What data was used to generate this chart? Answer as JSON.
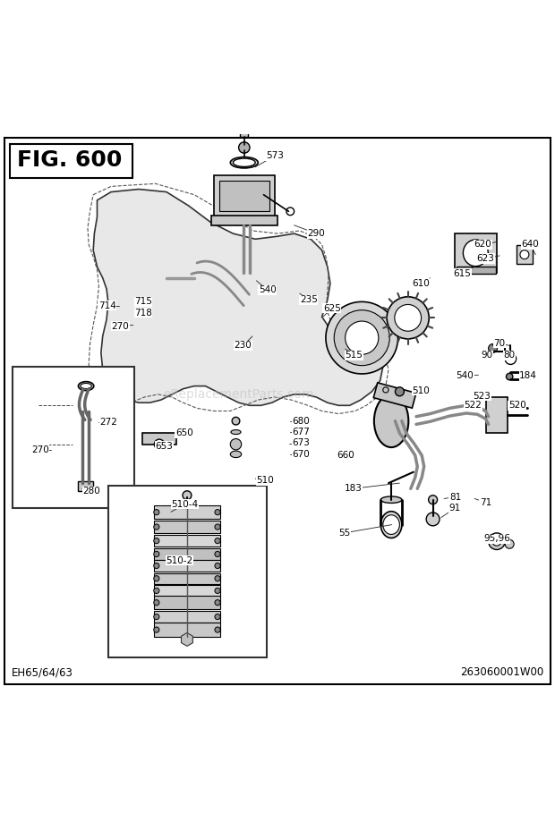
{
  "title": "FIG. 600",
  "bg_color": "#ffffff",
  "border_color": "#000000",
  "fig_width": 6.2,
  "fig_height": 9.19,
  "dpi": 100,
  "footer_left": "EH65/64/63",
  "footer_right": "263060001W00",
  "watermark": "eReplacementParts.com"
}
